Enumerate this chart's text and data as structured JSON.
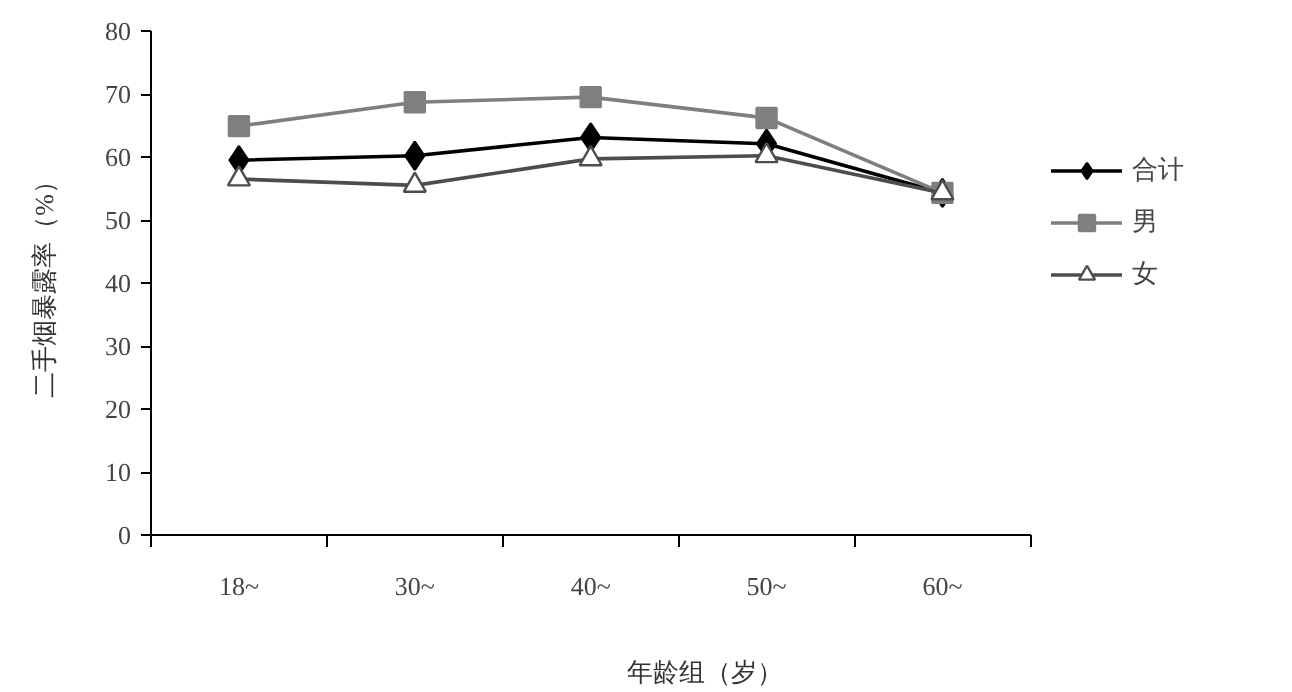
{
  "chart_data": {
    "type": "line",
    "xlabel": "年龄组（岁）",
    "ylabel": "二手烟暴露率（%）",
    "categories": [
      "18~",
      "30~",
      "40~",
      "50~",
      "60~"
    ],
    "ylim": [
      0,
      80
    ],
    "yticks": [
      0,
      10,
      20,
      30,
      40,
      50,
      60,
      70,
      80
    ],
    "grid": false,
    "legend": "right",
    "series": [
      {
        "name": "合计",
        "color": "#000000",
        "marker": "diamond",
        "values": [
          59.5,
          60.2,
          63.1,
          62.1,
          54.3
        ]
      },
      {
        "name": "男",
        "color": "#7f7f7f",
        "marker": "square",
        "values": [
          64.9,
          68.7,
          69.5,
          66.2,
          54.3
        ]
      },
      {
        "name": "女",
        "color": "#4d4d4d",
        "marker": "triangle",
        "values": [
          56.5,
          55.5,
          59.7,
          60.2,
          54.3
        ]
      }
    ]
  }
}
